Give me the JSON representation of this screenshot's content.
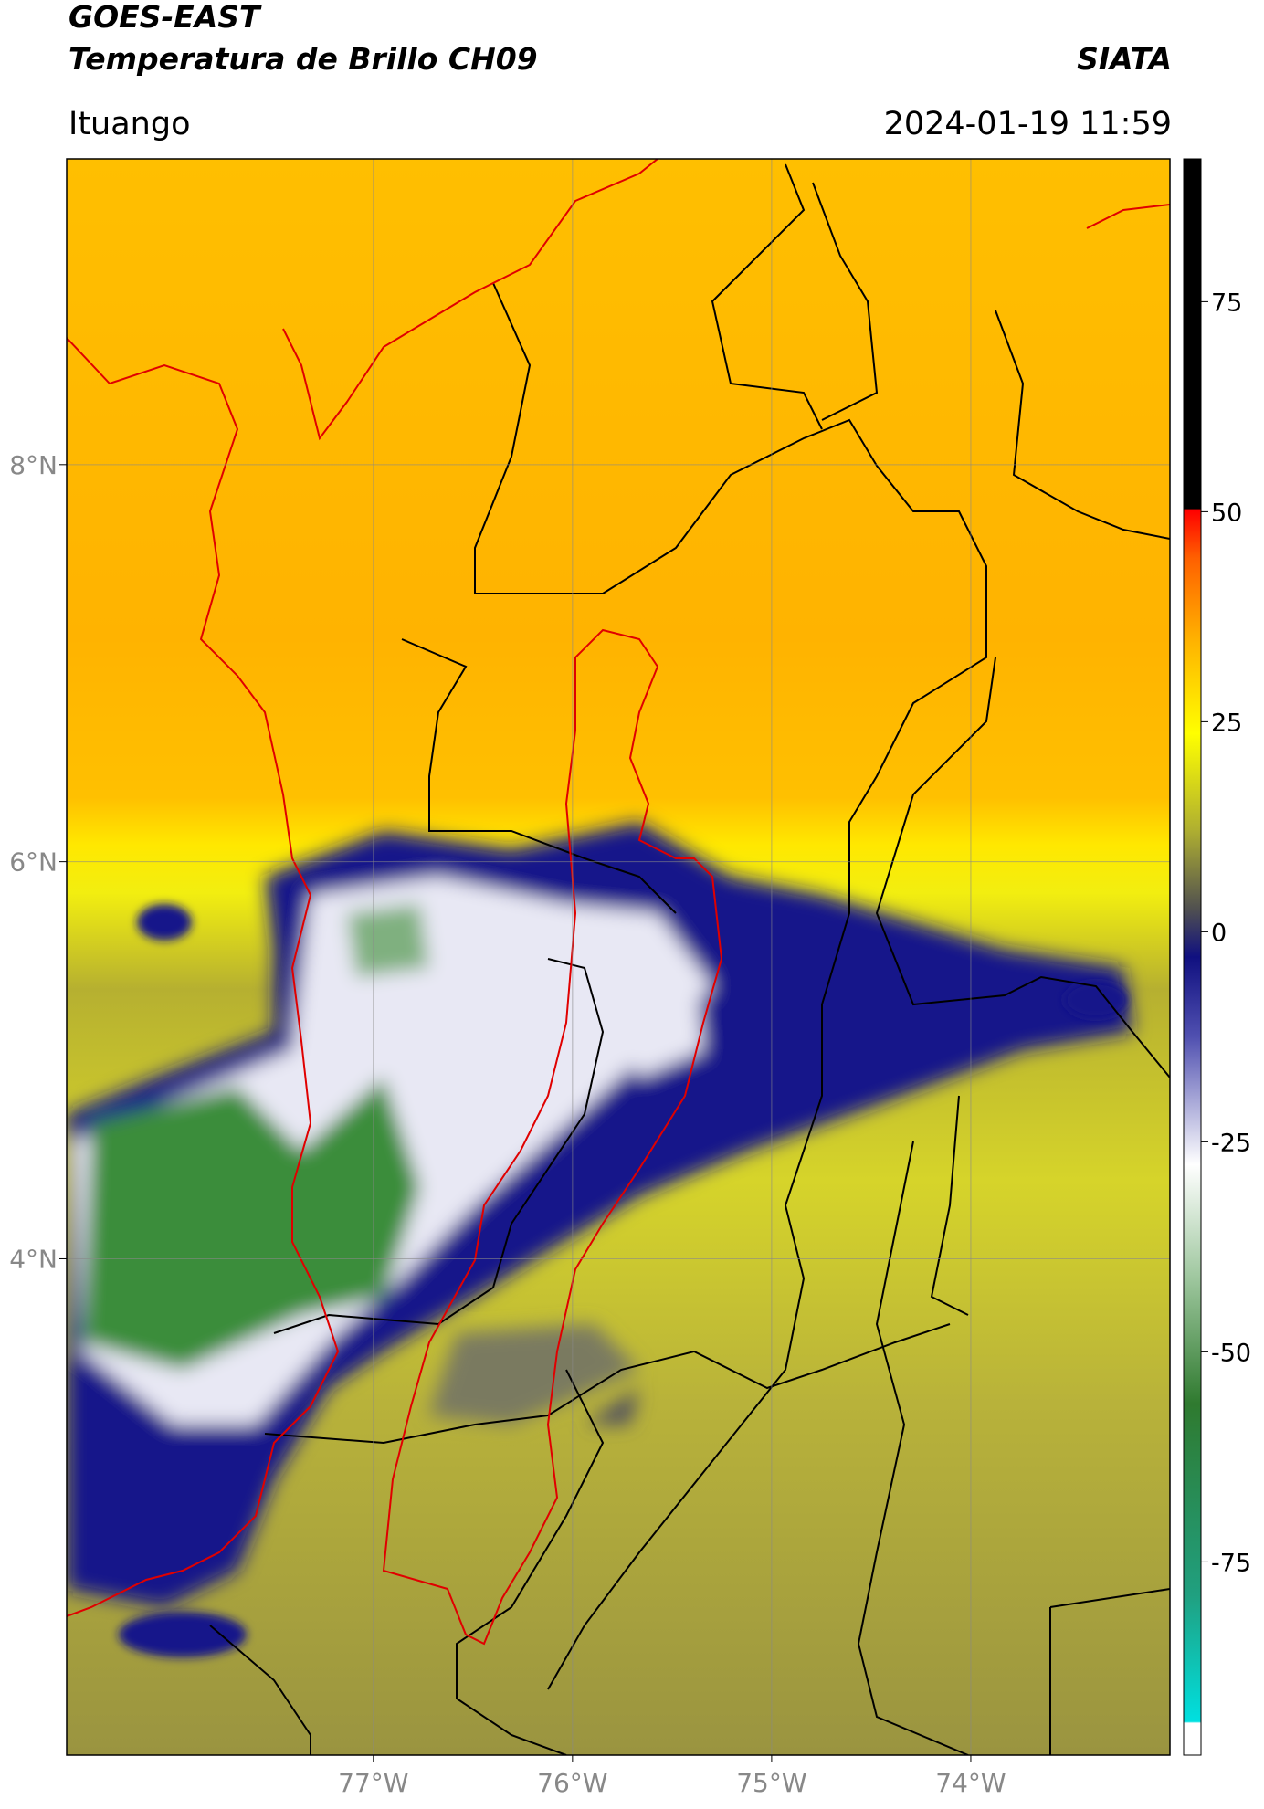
{
  "chart_data": {
    "type": "map",
    "title": "GOES-EAST",
    "subtitle": "Temperatura de Brillo CH09",
    "source": "SIATA",
    "location": "Ituango",
    "datetime": "2024-01-19 11:59",
    "xlim": [
      -78.54,
      -73.0
    ],
    "ylim": [
      1.5,
      9.54
    ],
    "xticks": [
      {
        "value": -77,
        "label": "77°W"
      },
      {
        "value": -76,
        "label": "76°W"
      },
      {
        "value": -75,
        "label": "75°W"
      },
      {
        "value": -74,
        "label": "74°W"
      }
    ],
    "yticks": [
      {
        "value": 8,
        "label": "8°N"
      },
      {
        "value": 6,
        "label": "6°N"
      },
      {
        "value": 4,
        "label": "4°N"
      }
    ],
    "grid": true,
    "colorbar": {
      "lim": [
        -98,
        92
      ],
      "ticks": [
        75,
        50,
        25,
        0,
        -25,
        -50,
        -75
      ]
    }
  }
}
